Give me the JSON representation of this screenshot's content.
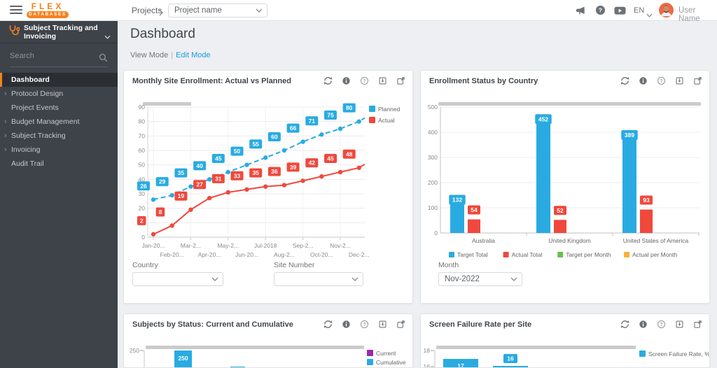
{
  "topbar": {
    "logo_text": "FLEX",
    "logo_sub": "DATABASES",
    "breadcrumb": "Projects",
    "project_select_value": "Project name",
    "language": "EN",
    "user_name": "User Name"
  },
  "sidebar": {
    "module_title": "Subject Tracking and Invoicing",
    "search_placeholder": "Search",
    "items": [
      {
        "label": "Dashboard",
        "active": true,
        "expandable": false
      },
      {
        "label": "Protocol Design",
        "active": false,
        "expandable": true
      },
      {
        "label": "Project Events",
        "active": false,
        "expandable": false
      },
      {
        "label": "Budget Management",
        "active": false,
        "expandable": true
      },
      {
        "label": "Subject Tracking",
        "active": false,
        "expandable": true
      },
      {
        "label": "Invoicing",
        "active": false,
        "expandable": true
      },
      {
        "label": "Audit Trail",
        "active": false,
        "expandable": false
      }
    ]
  },
  "page": {
    "title": "Dashboard",
    "view_mode": "View Mode",
    "separator": "|",
    "edit_mode": "Edit Mode"
  },
  "cards": [
    {
      "title": "Monthly Site Enrollment: Actual vs Planned",
      "filters": [
        {
          "label": "Country",
          "value": ""
        },
        {
          "label": "Site Number",
          "value": ""
        }
      ]
    },
    {
      "title": "Enrollment Status by Country",
      "filters": [
        {
          "label": "Month",
          "value": "Nov-2022"
        }
      ]
    },
    {
      "title": "Subjects by Status: Current and Cumulative",
      "filters": []
    },
    {
      "title": "Screen Failure Rate per Site",
      "filters": []
    }
  ],
  "colors": {
    "accent_orange": "#f5821f",
    "blue": "#29abe2",
    "red": "#f0483c",
    "green": "#6abf4b",
    "yellow": "#fbb03b",
    "purple": "#9c27b0",
    "link_blue": "#1d9bd8"
  },
  "chart_data": [
    {
      "type": "line",
      "title": "Monthly Site Enrollment: Actual vs Planned",
      "x_labels": [
        "Jan-20...",
        "Feb-20...",
        "Mar-2...",
        "Apr-20...",
        "May-2...",
        "Jun-20...",
        "Jul-2018",
        "Aug-2...",
        "Sep-2...",
        "Oct-20...",
        "Nov-2...",
        "Dec-2..."
      ],
      "series": [
        {
          "name": "Planned",
          "color": "#29abe2",
          "style": "dashed",
          "values": [
            26,
            29,
            35,
            40,
            45,
            50,
            55,
            60,
            66,
            71,
            75,
            80
          ]
        },
        {
          "name": "Actual",
          "color": "#f0483c",
          "style": "solid",
          "values": [
            2,
            8,
            19,
            27,
            31,
            33,
            35,
            36,
            39,
            42,
            45,
            48
          ]
        }
      ],
      "ylim": [
        0,
        90
      ],
      "ytick_step": 10,
      "grid": true,
      "legend_position": "top-right"
    },
    {
      "type": "bar",
      "title": "Enrollment Status by Country",
      "categories": [
        "Australia",
        "United Kingdom",
        "United States of America"
      ],
      "series": [
        {
          "name": "Target Total",
          "color": "#29abe2",
          "values": [
            132,
            452,
            389
          ]
        },
        {
          "name": "Actual Total",
          "color": "#f0483c",
          "values": [
            54,
            52,
            93
          ]
        },
        {
          "name": "Target per Month",
          "color": "#6abf4b",
          "values": []
        },
        {
          "name": "Actual per Month",
          "color": "#fbb03b",
          "values": []
        }
      ],
      "ylim": [
        0,
        500
      ],
      "ytick_step": 100,
      "grid": true,
      "legend_position": "bottom"
    },
    {
      "type": "bar",
      "title": "Subjects by Status: Current and Cumulative",
      "note": "partially visible below viewport",
      "visible_yticks": [
        "250"
      ],
      "visible_bars": [
        {
          "value": 250,
          "label": "250",
          "color": "#29abe2"
        },
        {
          "value": null,
          "label": "",
          "color": "#29abe2"
        }
      ],
      "legend": [
        {
          "name": "Current",
          "color": "#9c27b0"
        },
        {
          "name": "Cumulative",
          "color": "#29abe2"
        }
      ]
    },
    {
      "type": "bar",
      "title": "Screen Failure Rate per Site",
      "note": "partially visible below viewport",
      "visible_yticks": [
        "18",
        "16"
      ],
      "visible_bars": [
        {
          "value": 17,
          "label": "17",
          "color": "#29abe2"
        },
        {
          "value": 16,
          "label": "16",
          "color": "#29abe2"
        }
      ],
      "legend": [
        {
          "name": "Screen Failure Rate, %",
          "color": "#29abe2"
        }
      ]
    }
  ]
}
